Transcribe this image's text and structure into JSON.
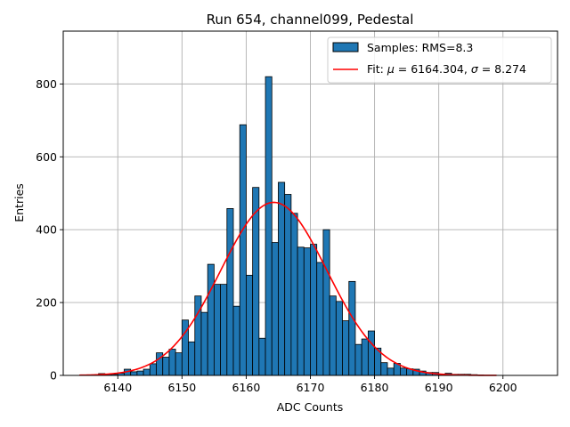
{
  "chart_data": {
    "type": "bar",
    "title": "Run 654, channel099, Pedestal",
    "xlabel": "ADC Counts",
    "ylabel": "Entries",
    "xlim": [
      6131.5,
      6208.5
    ],
    "ylim": [
      0,
      945
    ],
    "xticks": [
      6140,
      6150,
      6160,
      6170,
      6180,
      6190,
      6200
    ],
    "yticks": [
      0,
      200,
      400,
      600,
      800
    ],
    "grid": true,
    "legend_position": "top-right",
    "bar_color": "#1f77b4",
    "fit_color": "#ff0000",
    "legend": {
      "histogram_label": "Samples: RMS=8.3",
      "fit_label_prefix": "Fit: ",
      "mu_symbol": "μ",
      "fit_label_mid": " = 6164.304, ",
      "sigma_symbol": "σ",
      "fit_label_end": " = 8.274"
    },
    "histogram": {
      "bins": [
        6137,
        6138,
        6139,
        6140,
        6141,
        6142,
        6143,
        6144,
        6145,
        6146,
        6147,
        6148,
        6149,
        6150,
        6151,
        6152,
        6153,
        6154,
        6155,
        6156,
        6157,
        6158,
        6159,
        6160,
        6161,
        6162,
        6163,
        6164,
        6165,
        6166,
        6167,
        6168,
        6169,
        6170,
        6171,
        6172,
        6173,
        6174,
        6175,
        6176,
        6177,
        6178,
        6179,
        6180,
        6181,
        6182,
        6183,
        6184,
        6185,
        6186,
        6187,
        6188,
        6189,
        6190,
        6191,
        6192,
        6193,
        6194,
        6195,
        6196
      ],
      "counts": [
        5,
        3,
        3,
        6,
        17,
        10,
        12,
        17,
        32,
        62,
        50,
        72,
        62,
        152,
        92,
        218,
        173,
        305,
        250,
        250,
        458,
        190,
        688,
        275,
        516,
        102,
        820,
        365,
        530,
        497,
        445,
        352,
        350,
        360,
        310,
        400,
        218,
        203,
        150,
        258,
        85,
        100,
        122,
        75,
        35,
        20,
        33,
        20,
        18,
        17,
        12,
        8,
        8,
        3,
        6,
        3,
        3,
        3,
        2,
        1
      ]
    },
    "fit": {
      "mu": 6164.304,
      "sigma": 8.274,
      "amplitude": 475,
      "x_range": [
        6134,
        6199
      ]
    }
  }
}
